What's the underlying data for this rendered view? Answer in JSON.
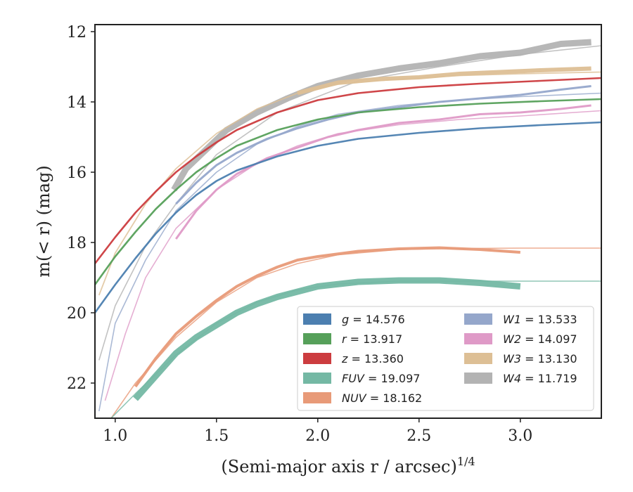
{
  "chart_data": {
    "type": "line",
    "xlabel": "(Semi-major axis r / arcsec)",
    "xlabel_superscript": "1/4",
    "ylabel": "m(< r) (mag)",
    "xlim": [
      0.9,
      3.4
    ],
    "ylim": [
      23.0,
      11.8
    ],
    "y_inverted": true,
    "grid": false,
    "legend_position": "lower-right",
    "x_ticks": [
      "1.0",
      "1.5",
      "2.0",
      "2.5",
      "3.0"
    ],
    "y_ticks": [
      "12",
      "14",
      "16",
      "18",
      "20",
      "22"
    ],
    "legend": [
      {
        "key": "g",
        "value": "14.576",
        "color": "#4c7fb0"
      },
      {
        "key": "r",
        "value": "13.917",
        "color": "#56a05a"
      },
      {
        "key": "z",
        "value": "13.360",
        "color": "#cc3c3f"
      },
      {
        "key": "FUV",
        "value": "19.097",
        "color": "#74b8a4"
      },
      {
        "key": "NUV",
        "value": "18.162",
        "color": "#e89a78"
      },
      {
        "key": "W1",
        "value": "13.533",
        "color": "#95a7cb"
      },
      {
        "key": "W2",
        "value": "14.097",
        "color": "#df9ac7"
      },
      {
        "key": "W3",
        "value": "13.130",
        "color": "#ddbf95"
      },
      {
        "key": "W4",
        "value": "11.719",
        "color": "#b3b3b3"
      }
    ],
    "series": [
      {
        "key": "W4-model",
        "color": "#b3b3b3",
        "width": 1.6,
        "x": [
          0.92,
          1.0,
          1.15,
          1.3,
          1.5,
          1.8,
          2.2,
          2.6,
          3.0,
          3.4
        ],
        "y": [
          21.35,
          19.8,
          18.1,
          16.9,
          15.5,
          14.3,
          13.4,
          13.0,
          12.65,
          12.4
        ]
      },
      {
        "key": "W4",
        "color": "#b3b3b3",
        "width": 9,
        "x": [
          1.29,
          1.35,
          1.45,
          1.55,
          1.7,
          1.85,
          2.0,
          2.2,
          2.4,
          2.6,
          2.8,
          3.0,
          3.2,
          3.35
        ],
        "y": [
          16.5,
          15.9,
          15.35,
          14.8,
          14.3,
          13.9,
          13.55,
          13.25,
          13.05,
          12.9,
          12.7,
          12.6,
          12.35,
          12.3
        ]
      },
      {
        "key": "W3-model",
        "color": "#ddbf95",
        "width": 1.8,
        "x": [
          0.92,
          1.0,
          1.15,
          1.3,
          1.5,
          1.7,
          1.9,
          2.1,
          2.4,
          2.7,
          3.0,
          3.4
        ],
        "y": [
          19.5,
          18.3,
          16.9,
          15.9,
          14.9,
          14.2,
          13.75,
          13.5,
          13.35,
          13.25,
          13.2,
          13.15
        ]
      },
      {
        "key": "W3",
        "color": "#ddbf95",
        "width": 6,
        "x": [
          1.9,
          2.1,
          2.3,
          2.5,
          2.7,
          2.9,
          3.1,
          3.35
        ],
        "y": [
          13.75,
          13.45,
          13.35,
          13.3,
          13.2,
          13.15,
          13.1,
          13.05
        ]
      },
      {
        "key": "W1-model",
        "color": "#95a7cb",
        "width": 1.6,
        "x": [
          0.92,
          1.0,
          1.15,
          1.3,
          1.5,
          1.7,
          1.9,
          2.1,
          2.4,
          2.7,
          3.0,
          3.4
        ],
        "y": [
          22.8,
          20.3,
          18.5,
          17.1,
          16.0,
          15.2,
          14.7,
          14.35,
          14.1,
          13.95,
          13.85,
          13.75
        ]
      },
      {
        "key": "W1",
        "color": "#95a7cb",
        "width": 3,
        "x": [
          1.3,
          1.4,
          1.5,
          1.6,
          1.75,
          1.9,
          2.05,
          2.2,
          2.4,
          2.6,
          2.8,
          3.0,
          3.2,
          3.35
        ],
        "y": [
          16.9,
          16.3,
          15.8,
          15.45,
          15.05,
          14.75,
          14.5,
          14.3,
          14.15,
          14.0,
          13.9,
          13.8,
          13.65,
          13.55
        ]
      },
      {
        "key": "W2-model",
        "color": "#df9ac7",
        "width": 1.6,
        "x": [
          0.95,
          1.05,
          1.15,
          1.3,
          1.5,
          1.7,
          1.9,
          2.1,
          2.4,
          2.7,
          3.0,
          3.4
        ],
        "y": [
          22.5,
          20.6,
          19.0,
          17.6,
          16.5,
          15.75,
          15.25,
          14.9,
          14.65,
          14.5,
          14.4,
          14.25
        ]
      },
      {
        "key": "W2",
        "color": "#df9ac7",
        "width": 3,
        "x": [
          1.3,
          1.4,
          1.5,
          1.6,
          1.75,
          1.9,
          2.05,
          2.2,
          2.4,
          2.6,
          2.8,
          3.0,
          3.2,
          3.35
        ],
        "y": [
          17.9,
          17.1,
          16.5,
          16.05,
          15.6,
          15.3,
          15.0,
          14.8,
          14.6,
          14.5,
          14.35,
          14.3,
          14.2,
          14.1
        ]
      },
      {
        "key": "z",
        "color": "#cc3c3f",
        "width": 2.6,
        "x": [
          0.9,
          1.0,
          1.1,
          1.2,
          1.3,
          1.4,
          1.5,
          1.6,
          1.8,
          2.0,
          2.2,
          2.5,
          2.8,
          3.1,
          3.4
        ],
        "y": [
          18.6,
          17.85,
          17.15,
          16.55,
          16.0,
          15.55,
          15.15,
          14.8,
          14.3,
          13.95,
          13.75,
          13.58,
          13.48,
          13.4,
          13.32
        ]
      },
      {
        "key": "r",
        "color": "#56a05a",
        "width": 2.6,
        "x": [
          0.9,
          1.0,
          1.1,
          1.2,
          1.3,
          1.4,
          1.5,
          1.6,
          1.8,
          2.0,
          2.2,
          2.5,
          2.8,
          3.1,
          3.4
        ],
        "y": [
          19.2,
          18.4,
          17.7,
          17.05,
          16.5,
          16.0,
          15.6,
          15.25,
          14.8,
          14.5,
          14.3,
          14.15,
          14.05,
          13.98,
          13.92
        ]
      },
      {
        "key": "g",
        "color": "#4c7fb0",
        "width": 2.6,
        "x": [
          0.9,
          1.0,
          1.1,
          1.2,
          1.3,
          1.4,
          1.5,
          1.6,
          1.8,
          2.0,
          2.2,
          2.5,
          2.8,
          3.1,
          3.4
        ],
        "y": [
          20.0,
          19.2,
          18.45,
          17.75,
          17.15,
          16.65,
          16.25,
          15.95,
          15.55,
          15.25,
          15.05,
          14.88,
          14.75,
          14.66,
          14.58
        ]
      },
      {
        "key": "NUV-model",
        "color": "#e89a78",
        "width": 1.6,
        "x": [
          0.98,
          1.1,
          1.3,
          1.5,
          1.7,
          1.9,
          2.1,
          2.4,
          2.7,
          3.0,
          3.4
        ],
        "y": [
          23.0,
          22.0,
          20.7,
          19.7,
          19.0,
          18.6,
          18.35,
          18.2,
          18.17,
          18.16,
          18.16
        ]
      },
      {
        "key": "NUV",
        "color": "#e89a78",
        "width": 4,
        "x": [
          1.1,
          1.2,
          1.3,
          1.4,
          1.5,
          1.6,
          1.7,
          1.8,
          1.9,
          2.0,
          2.2,
          2.4,
          2.6,
          2.8,
          3.0
        ],
        "y": [
          22.1,
          21.3,
          20.6,
          20.1,
          19.65,
          19.25,
          18.95,
          18.7,
          18.5,
          18.4,
          18.25,
          18.18,
          18.15,
          18.2,
          18.28
        ]
      },
      {
        "key": "FUV-model",
        "color": "#74b8a4",
        "width": 1.6,
        "x": [
          0.98,
          1.1,
          1.3,
          1.5,
          1.7,
          1.9,
          2.1,
          2.4,
          2.7,
          3.0,
          3.4
        ],
        "y": [
          23.0,
          22.3,
          21.2,
          20.3,
          19.7,
          19.35,
          19.18,
          19.1,
          19.1,
          19.1,
          19.1
        ]
      },
      {
        "key": "FUV",
        "color": "#74b8a4",
        "width": 9,
        "x": [
          1.1,
          1.2,
          1.3,
          1.4,
          1.5,
          1.6,
          1.7,
          1.8,
          1.9,
          2.0,
          2.2,
          2.4,
          2.6,
          2.8,
          3.0
        ],
        "y": [
          22.45,
          21.8,
          21.15,
          20.7,
          20.35,
          20.0,
          19.75,
          19.55,
          19.4,
          19.25,
          19.12,
          19.08,
          19.08,
          19.15,
          19.25
        ]
      }
    ]
  }
}
